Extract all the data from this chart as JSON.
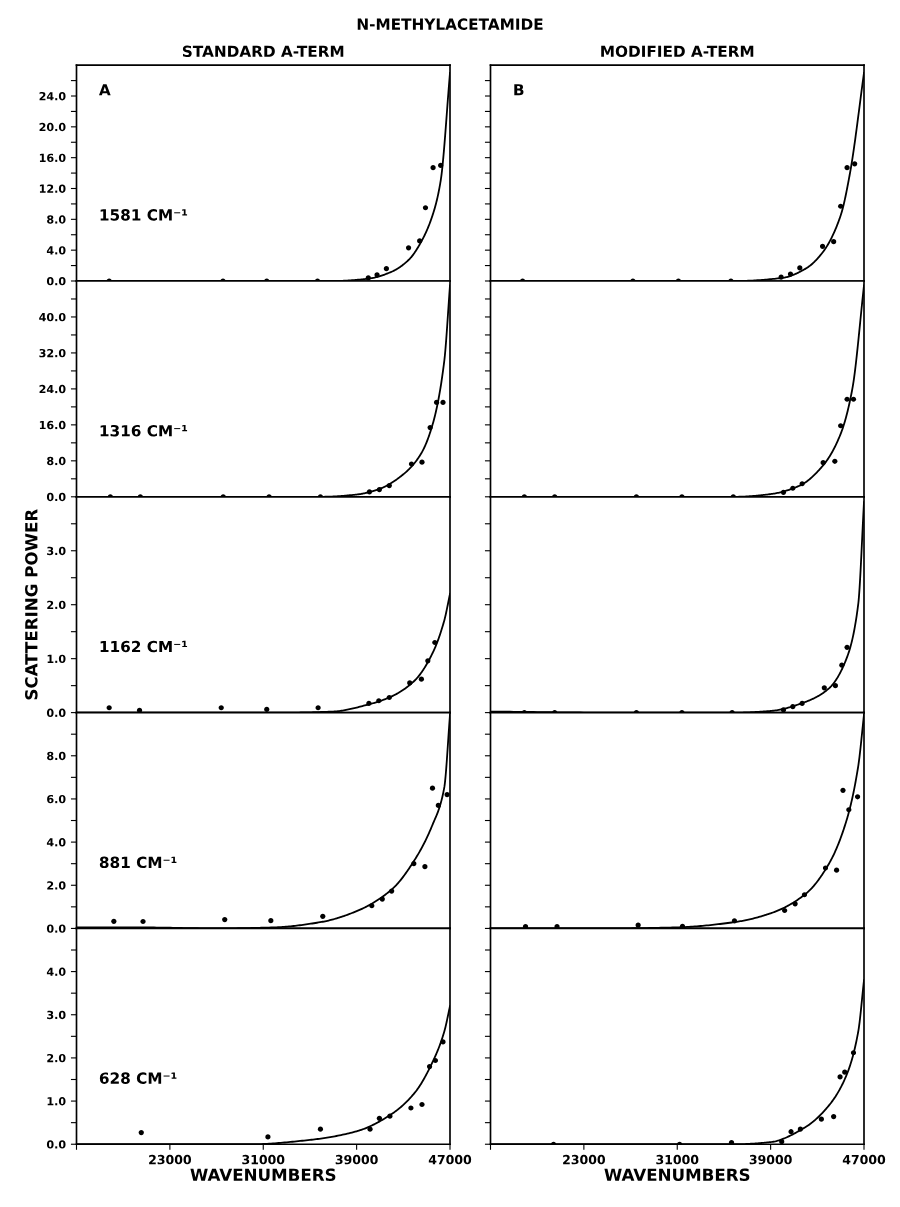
{
  "chart_data": [
    {
      "type": "scatter",
      "title": "N-METHYLACETAMIDE",
      "subtitle": "STANDARD A-TERM",
      "annotations": [
        "A",
        "1581 CM⁻¹"
      ],
      "xlim": [
        15000,
        47000
      ],
      "ylim": [
        0,
        28
      ],
      "yticks": [
        {
          "value": 0,
          "label": "0.0"
        },
        {
          "value": 2,
          "label": null
        },
        {
          "value": 4,
          "label": "4.0"
        },
        {
          "value": 6,
          "label": null
        },
        {
          "value": 8,
          "label": "8.0"
        },
        {
          "value": 10,
          "label": null
        },
        {
          "value": 12,
          "label": "12.0"
        },
        {
          "value": 14,
          "label": null
        },
        {
          "value": 16,
          "label": "16.0"
        },
        {
          "value": 18,
          "label": null
        },
        {
          "value": 20,
          "label": "20.0"
        },
        {
          "value": 22,
          "label": null
        },
        {
          "value": 24,
          "label": "24.0"
        },
        {
          "value": 26,
          "label": null
        }
      ],
      "tick_labels": "y",
      "series": [
        {
          "marker": "circle",
          "color": "#000000",
          "x": [
            17800,
            27550,
            31300,
            35650,
            40000,
            40750,
            41550,
            43450,
            44400,
            44900,
            45550,
            46200
          ],
          "values": [
            0,
            0,
            0,
            0,
            0.4,
            0.8,
            1.6,
            4.3,
            5.2,
            9.5,
            14.7,
            15.0
          ]
        },
        {
          "type": "line",
          "color": "#000000",
          "x": [
            15000,
            25000,
            33000,
            37000,
            40000,
            42000,
            43500,
            44500,
            45500,
            46200,
            47000
          ],
          "values": [
            0,
            0,
            0,
            0,
            0.3,
            1.2,
            2.8,
            5,
            8.5,
            13,
            27
          ]
        }
      ]
    },
    {
      "type": "scatter",
      "annotations": [
        "1316 CM⁻¹"
      ],
      "xlim": [
        15000,
        47000
      ],
      "ylim": [
        0,
        48
      ],
      "yticks": [
        {
          "value": 0,
          "label": "0.0"
        },
        {
          "value": 4,
          "label": null
        },
        {
          "value": 8,
          "label": "8.0"
        },
        {
          "value": 12,
          "label": null
        },
        {
          "value": 16,
          "label": "16.0"
        },
        {
          "value": 20,
          "label": null
        },
        {
          "value": 24,
          "label": "24.0"
        },
        {
          "value": 28,
          "label": null
        },
        {
          "value": 32,
          "label": "32.0"
        },
        {
          "value": 36,
          "label": null
        },
        {
          "value": 40,
          "label": "40.0"
        },
        {
          "value": 44,
          "label": null
        }
      ],
      "tick_labels": "y",
      "series": [
        {
          "marker": "circle",
          "color": "#000000",
          "x": [
            17900,
            20470,
            27570,
            31500,
            35900,
            40100,
            40950,
            41800,
            43700,
            44600,
            45300,
            45850,
            46400
          ],
          "values": [
            0,
            0,
            0,
            0,
            0,
            1.1,
            1.6,
            2.5,
            7.3,
            7.7,
            15.4,
            21,
            21
          ]
        },
        {
          "type": "line",
          "color": "#000000",
          "x": [
            15000,
            25000,
            32000,
            36000,
            39000,
            41000,
            43000,
            44500,
            45500,
            46500,
            47000
          ],
          "values": [
            0,
            0,
            0,
            0,
            0.5,
            1.8,
            5,
            9.5,
            16,
            30,
            47
          ]
        }
      ]
    },
    {
      "type": "scatter",
      "ylabel": "SCATTERING POWER",
      "annotations": [
        "1162 CM⁻¹"
      ],
      "xlim": [
        15000,
        47000
      ],
      "ylim": [
        0,
        4
      ],
      "yticks": [
        {
          "value": 0,
          "label": "0.0"
        },
        {
          "value": 0.5,
          "label": null
        },
        {
          "value": 1,
          "label": "1.0"
        },
        {
          "value": 1.5,
          "label": null
        },
        {
          "value": 2,
          "label": "2.0"
        },
        {
          "value": 2.5,
          "label": null
        },
        {
          "value": 3,
          "label": "3.0"
        },
        {
          "value": 3.5,
          "label": null
        }
      ],
      "tick_labels": "y",
      "series": [
        {
          "marker": "circle",
          "color": "#000000",
          "x": [
            17800,
            20400,
            27400,
            31300,
            35700,
            40050,
            40900,
            41800,
            43550,
            44550,
            45100,
            45700
          ],
          "values": [
            0.09,
            0.04,
            0.09,
            0.06,
            0.09,
            0.17,
            0.22,
            0.28,
            0.55,
            0.62,
            0.96,
            1.3
          ]
        },
        {
          "type": "line",
          "color": "#000000",
          "x": [
            15000,
            20000,
            28000,
            33000,
            37000,
            40000,
            42000,
            44000,
            45500,
            46500,
            47000
          ],
          "values": [
            0,
            0,
            0,
            0,
            0.02,
            0.15,
            0.3,
            0.6,
            1.1,
            1.7,
            2.2
          ]
        }
      ]
    },
    {
      "type": "scatter",
      "annotations": [
        "881 CM⁻¹"
      ],
      "xlim": [
        15000,
        47000
      ],
      "ylim": [
        0,
        10
      ],
      "yticks": [
        {
          "value": 0,
          "label": "0.0"
        },
        {
          "value": 1,
          "label": null
        },
        {
          "value": 2,
          "label": "2.0"
        },
        {
          "value": 3,
          "label": null
        },
        {
          "value": 4,
          "label": "4.0"
        },
        {
          "value": 5,
          "label": null
        },
        {
          "value": 6,
          "label": "6.0"
        },
        {
          "value": 7,
          "label": null
        },
        {
          "value": 8,
          "label": "8.0"
        },
        {
          "value": 9,
          "label": null
        }
      ],
      "tick_labels": "y",
      "series": [
        {
          "marker": "circle",
          "color": "#000000",
          "x": [
            18200,
            20700,
            27700,
            31650,
            36100,
            40300,
            41200,
            42000,
            43900,
            44850,
            45500,
            46000,
            46750
          ],
          "values": [
            0.33,
            0.32,
            0.41,
            0.36,
            0.56,
            1.05,
            1.36,
            1.73,
            3.0,
            2.86,
            6.5,
            5.7,
            6.2
          ]
        },
        {
          "type": "line",
          "color": "#000000",
          "x": [
            15000,
            20000,
            27000,
            32000,
            36000,
            39000,
            42000,
            44000,
            45500,
            46500,
            47000
          ],
          "values": [
            0.05,
            0.05,
            0,
            0.05,
            0.3,
            0.8,
            1.8,
            3.2,
            4.8,
            6.5,
            9.9
          ]
        }
      ]
    },
    {
      "type": "scatter",
      "xlabel": "WAVENUMBERS",
      "annotations": [
        "628 CM⁻¹"
      ],
      "xlim": [
        15000,
        47000
      ],
      "ylim": [
        0,
        5
      ],
      "xticks": [
        {
          "value": 15000,
          "label": null
        },
        23000,
        31000,
        39000,
        47000
      ],
      "yticks": [
        {
          "value": 0,
          "label": "0.0"
        },
        {
          "value": 0.5,
          "label": null
        },
        {
          "value": 1,
          "label": "1.0"
        },
        {
          "value": 1.5,
          "label": null
        },
        {
          "value": 2,
          "label": "2.0"
        },
        {
          "value": 2.5,
          "label": null
        },
        {
          "value": 3,
          "label": "3.0"
        },
        {
          "value": 3.5,
          "label": null
        },
        {
          "value": 4,
          "label": "4.0"
        },
        {
          "value": 4.5,
          "label": null
        }
      ],
      "series": [
        {
          "marker": "circle",
          "color": "#000000",
          "x": [
            20550,
            31400,
            35900,
            40150,
            40950,
            41850,
            43650,
            44600,
            45250,
            45750,
            46400
          ],
          "values": [
            0.27,
            0.17,
            0.35,
            0.35,
            0.6,
            0.65,
            0.84,
            0.92,
            1.8,
            1.94,
            2.37
          ]
        },
        {
          "type": "line",
          "color": "#000000",
          "x": [
            15000,
            25000,
            30000,
            35000,
            39000,
            42000,
            44000,
            45500,
            46500,
            47000
          ],
          "values": [
            0,
            0,
            0,
            0.1,
            0.3,
            0.7,
            1.2,
            1.9,
            2.6,
            3.2
          ]
        }
      ]
    },
    {
      "type": "scatter",
      "subtitle": "MODIFIED A-TERM",
      "annotations": [
        "B"
      ],
      "xlim": [
        15000,
        47000
      ],
      "ylim": [
        0,
        28
      ],
      "yticks": [
        {
          "value": 0,
          "label": null
        },
        {
          "value": 2,
          "label": null
        },
        {
          "value": 4,
          "label": null
        },
        {
          "value": 6,
          "label": null
        },
        {
          "value": 8,
          "label": null
        },
        {
          "value": 10,
          "label": null
        },
        {
          "value": 12,
          "label": null
        },
        {
          "value": 14,
          "label": null
        },
        {
          "value": 16,
          "label": null
        },
        {
          "value": 18,
          "label": null
        },
        {
          "value": 20,
          "label": null
        },
        {
          "value": 22,
          "label": null
        },
        {
          "value": 24,
          "label": null
        },
        {
          "value": 26,
          "label": null
        }
      ],
      "tick_labels": false,
      "series": [
        {
          "marker": "circle",
          "color": "#000000",
          "x": [
            17750,
            27200,
            31100,
            35600,
            39900,
            40700,
            41500,
            43450,
            44400,
            45000,
            45550,
            46200
          ],
          "values": [
            0,
            0,
            0,
            0,
            0.5,
            0.9,
            1.7,
            4.5,
            5.1,
            9.7,
            14.7,
            15.2
          ]
        },
        {
          "type": "line",
          "color": "#000000",
          "x": [
            15000,
            25000,
            31000,
            36000,
            40000,
            42000,
            43500,
            45000,
            45800,
            47000
          ],
          "values": [
            0,
            0,
            0,
            0,
            0.4,
            1.6,
            3.8,
            8.5,
            14,
            27
          ]
        }
      ]
    },
    {
      "type": "scatter",
      "xlim": [
        15000,
        47000
      ],
      "ylim": [
        0,
        48
      ],
      "yticks": [
        {
          "value": 0,
          "label": null
        },
        {
          "value": 4,
          "label": null
        },
        {
          "value": 8,
          "label": null
        },
        {
          "value": 12,
          "label": null
        },
        {
          "value": 16,
          "label": null
        },
        {
          "value": 20,
          "label": null
        },
        {
          "value": 24,
          "label": null
        },
        {
          "value": 28,
          "label": null
        },
        {
          "value": 32,
          "label": null
        },
        {
          "value": 36,
          "label": null
        },
        {
          "value": 40,
          "label": null
        },
        {
          "value": 44,
          "label": null
        }
      ],
      "tick_labels": false,
      "series": [
        {
          "marker": "circle",
          "color": "#000000",
          "x": [
            17900,
            20500,
            27500,
            31400,
            35800,
            40100,
            40900,
            41700,
            43500,
            44500,
            45000,
            45550,
            46100
          ],
          "values": [
            0,
            0,
            0,
            0,
            0,
            1.0,
            1.9,
            2.9,
            7.6,
            7.9,
            15.8,
            21.7,
            21.7
          ]
        },
        {
          "type": "line",
          "color": "#000000",
          "x": [
            15000,
            25000,
            32000,
            36000,
            39000,
            41500,
            43500,
            45000,
            46000,
            47000
          ],
          "values": [
            0,
            0,
            0,
            0,
            0.6,
            2.5,
            7,
            14,
            24,
            47
          ]
        }
      ]
    },
    {
      "type": "scatter",
      "xlim": [
        15000,
        47000
      ],
      "ylim": [
        0,
        4
      ],
      "yticks": [
        {
          "value": 0,
          "label": null
        },
        {
          "value": 0.5,
          "label": null
        },
        {
          "value": 1,
          "label": null
        },
        {
          "value": 1.5,
          "label": null
        },
        {
          "value": 2,
          "label": null
        },
        {
          "value": 2.5,
          "label": null
        },
        {
          "value": 3,
          "label": null
        },
        {
          "value": 3.5,
          "label": null
        }
      ],
      "tick_labels": false,
      "series": [
        {
          "marker": "circle",
          "color": "#000000",
          "x": [
            17900,
            20500,
            27500,
            31400,
            35700,
            40100,
            40900,
            41700,
            43600,
            44550,
            45100,
            45550
          ],
          "values": [
            0,
            0,
            0,
            0,
            0,
            0.05,
            0.11,
            0.17,
            0.46,
            0.5,
            0.88,
            1.21
          ]
        },
        {
          "type": "line",
          "color": "#000000",
          "x": [
            15000,
            25000,
            32000,
            36000,
            39000,
            42000,
            44000,
            45500,
            46500,
            47000
          ],
          "values": [
            0.02,
            0,
            0,
            0,
            0.03,
            0.2,
            0.45,
            1.0,
            2.0,
            3.9
          ]
        }
      ]
    },
    {
      "type": "scatter",
      "xlim": [
        15000,
        47000
      ],
      "ylim": [
        0,
        10
      ],
      "yticks": [
        {
          "value": 0,
          "label": null
        },
        {
          "value": 1,
          "label": null
        },
        {
          "value": 2,
          "label": null
        },
        {
          "value": 3,
          "label": null
        },
        {
          "value": 4,
          "label": null
        },
        {
          "value": 5,
          "label": null
        },
        {
          "value": 6,
          "label": null
        },
        {
          "value": 7,
          "label": null
        },
        {
          "value": 8,
          "label": null
        },
        {
          "value": 9,
          "label": null
        }
      ],
      "tick_labels": false,
      "series": [
        {
          "marker": "circle",
          "color": "#000000",
          "x": [
            18000,
            20700,
            27650,
            31450,
            35900,
            40200,
            41100,
            41900,
            43700,
            44650,
            45200,
            45700,
            46450
          ],
          "values": [
            0.08,
            0.08,
            0.15,
            0.1,
            0.35,
            0.83,
            1.14,
            1.56,
            2.8,
            2.7,
            6.4,
            5.5,
            6.1
          ]
        },
        {
          "type": "line",
          "color": "#000000",
          "x": [
            15000,
            25000,
            31000,
            36000,
            39000,
            42000,
            44000,
            45500,
            46500,
            47000
          ],
          "values": [
            0,
            0,
            0.05,
            0.3,
            0.7,
            1.6,
            3.0,
            5,
            7.5,
            9.9
          ]
        }
      ]
    },
    {
      "type": "scatter",
      "xlabel": "WAVENUMBERS",
      "xlim": [
        15000,
        47000
      ],
      "ylim": [
        0,
        5
      ],
      "xticks": [
        {
          "value": 15000,
          "label": null
        },
        23000,
        31000,
        39000,
        47000
      ],
      "yticks": [
        {
          "value": 0,
          "label": null
        },
        {
          "value": 0.5,
          "label": null
        },
        {
          "value": 1,
          "label": null
        },
        {
          "value": 1.5,
          "label": null
        },
        {
          "value": 2,
          "label": null
        },
        {
          "value": 2.5,
          "label": null
        },
        {
          "value": 3,
          "label": null
        },
        {
          "value": 3.5,
          "label": null
        },
        {
          "value": 4,
          "label": null
        },
        {
          "value": 4.5,
          "label": null
        }
      ],
      "tick_labels": "x",
      "series": [
        {
          "marker": "circle",
          "color": "#000000",
          "x": [
            20400,
            31200,
            35650,
            39950,
            40750,
            41550,
            43350,
            44400,
            44950,
            45350,
            46100
          ],
          "values": [
            0,
            0,
            0.04,
            0.06,
            0.29,
            0.35,
            0.58,
            0.64,
            1.56,
            1.67,
            2.12
          ]
        },
        {
          "type": "line",
          "color": "#000000",
          "x": [
            15000,
            25000,
            31000,
            36000,
            39000,
            42000,
            44000,
            45500,
            46500,
            47000
          ],
          "values": [
            0,
            0,
            0,
            0,
            0.05,
            0.4,
            0.9,
            1.6,
            2.6,
            3.8
          ]
        }
      ]
    }
  ]
}
